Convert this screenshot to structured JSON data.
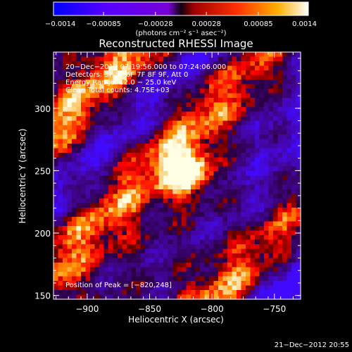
{
  "colorbar": {
    "ticks": [
      "−0.0014",
      "−0.00085",
      "−0.00028",
      "0.00028",
      "0.00085",
      "0.0014"
    ],
    "tick_values": [
      -0.0014,
      -0.00085,
      -0.00028,
      0.00028,
      0.00085,
      0.0014
    ],
    "range": [
      -0.0014,
      0.0014
    ],
    "units_label": "(photons cm⁻² s⁻¹ asec⁻²)"
  },
  "image": {
    "title": "Reconstructed RHESSI Image",
    "info_lines": [
      "20−Dec−2012 07:19:56.000 to 07:24:06.000",
      "Detectors: 3F 5F 6F 7F 8F 9F, Att 0",
      "Energy Range: 12.0 − 25.0 keV",
      "Clean      Total counts: 4.75E+03"
    ],
    "peak_label": "Position of Peak = [−820,248]",
    "peak": [
      -820,
      248
    ],
    "x_axis": {
      "label": "Heliocentric X (arcsec)",
      "ticks": [
        "−900",
        "−850",
        "−800",
        "−750"
      ],
      "tick_values": [
        -900,
        -850,
        -800,
        -750
      ],
      "range": [
        -927,
        -729
      ]
    },
    "y_axis": {
      "label": "Heliocentric Y (arcsec)",
      "ticks": [
        "150",
        "200",
        "250",
        "300"
      ],
      "tick_values": [
        150,
        200,
        250,
        300
      ],
      "range": [
        147,
        345
      ]
    },
    "colors": {
      "background": "#000000",
      "low": "#0000ff",
      "mid_low": "#7e00ff",
      "zero": "#000000",
      "mid_high": "#ff2000",
      "high": "#ffffff"
    }
  },
  "footer": {
    "timestamp": "21−Dec−2012 20:55"
  }
}
